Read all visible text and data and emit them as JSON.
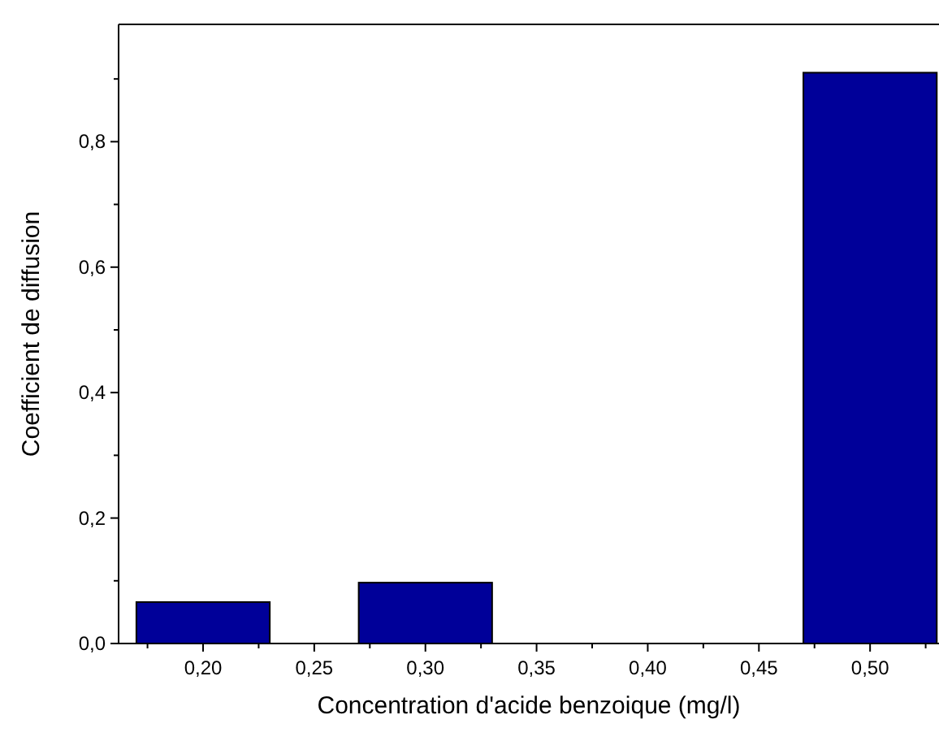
{
  "chart_data": {
    "type": "bar",
    "xlabel": "Concentration d'acide benzoique (mg/l)",
    "ylabel": "Coefficient de diffusion",
    "x": [
      0.2,
      0.3,
      0.5
    ],
    "values": [
      0.066,
      0.097,
      0.91
    ],
    "color": "#000099",
    "xlim": [
      0.162,
      0.531
    ],
    "xticks": [
      {
        "value": 0.175,
        "label": null
      },
      {
        "value": 0.2,
        "label": "0,20"
      },
      {
        "value": 0.225,
        "label": null
      },
      {
        "value": 0.25,
        "label": "0,25"
      },
      {
        "value": 0.275,
        "label": null
      },
      {
        "value": 0.3,
        "label": "0,30"
      },
      {
        "value": 0.325,
        "label": null
      },
      {
        "value": 0.35,
        "label": "0,35"
      },
      {
        "value": 0.375,
        "label": null
      },
      {
        "value": 0.4,
        "label": "0,40"
      },
      {
        "value": 0.425,
        "label": null
      },
      {
        "value": 0.45,
        "label": "0,45"
      },
      {
        "value": 0.475,
        "label": null
      },
      {
        "value": 0.5,
        "label": "0,50"
      },
      {
        "value": 0.525,
        "label": null
      }
    ],
    "ylim": [
      0,
      0.987
    ],
    "yticks": [
      {
        "value": 0,
        "label": "0,0"
      },
      {
        "value": 0.1,
        "label": null
      },
      {
        "value": 0.2,
        "label": "0,2"
      },
      {
        "value": 0.3,
        "label": null
      },
      {
        "value": 0.4,
        "label": "0,4"
      },
      {
        "value": 0.5,
        "label": null
      },
      {
        "value": 0.6,
        "label": "0,6"
      },
      {
        "value": 0.7,
        "label": null
      },
      {
        "value": 0.8,
        "label": "0,8"
      },
      {
        "value": 0.9,
        "label": null
      }
    ],
    "grid": false
  }
}
